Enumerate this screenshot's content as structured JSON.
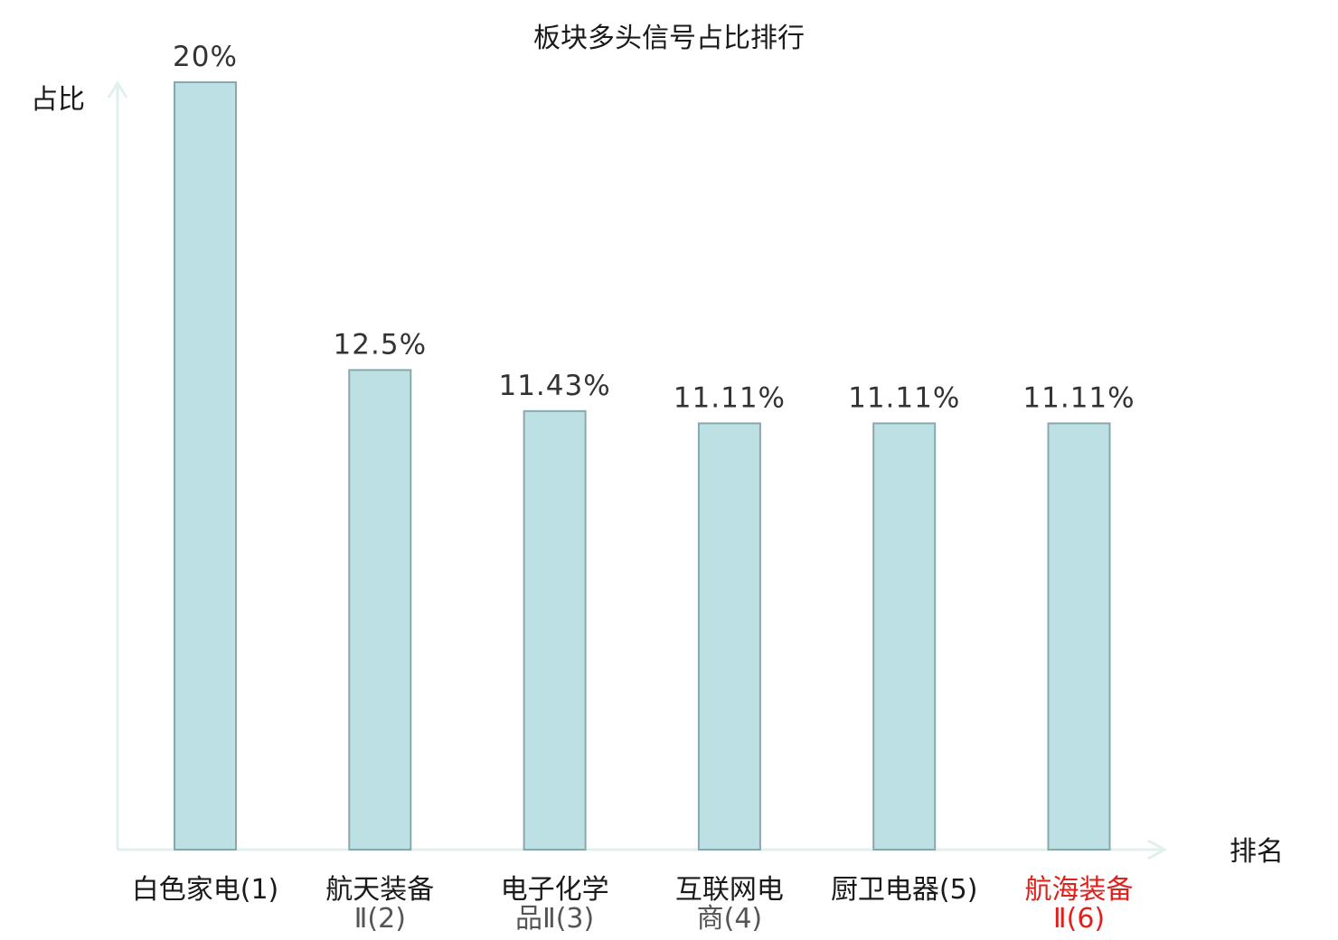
{
  "chart_data": {
    "type": "bar",
    "title": "板块多头信号占比排行",
    "ylabel": "占比",
    "xlabel": "排名",
    "ylim": [
      0,
      20
    ],
    "grid": false,
    "categories": [
      [
        "白色家电(1)"
      ],
      [
        "航天装备",
        "Ⅱ(2)"
      ],
      [
        "电子化学",
        "品Ⅱ(3)"
      ],
      [
        "互联网电",
        "商(4)"
      ],
      [
        "厨卫电器(5)"
      ],
      [
        "航海装备",
        "Ⅱ(6)"
      ]
    ],
    "values": [
      20,
      12.5,
      11.43,
      11.11,
      11.11,
      11.11
    ],
    "value_labels": [
      "20%",
      "12.5%",
      "11.43%",
      "11.11%",
      "11.11%",
      "11.11%"
    ],
    "highlight_index": 5,
    "colors": {
      "bar_fill": "#bce0e3",
      "bar_stroke": "#8aa8ab",
      "axis": "#dff0ee",
      "highlight_text": "#e0211b"
    }
  }
}
